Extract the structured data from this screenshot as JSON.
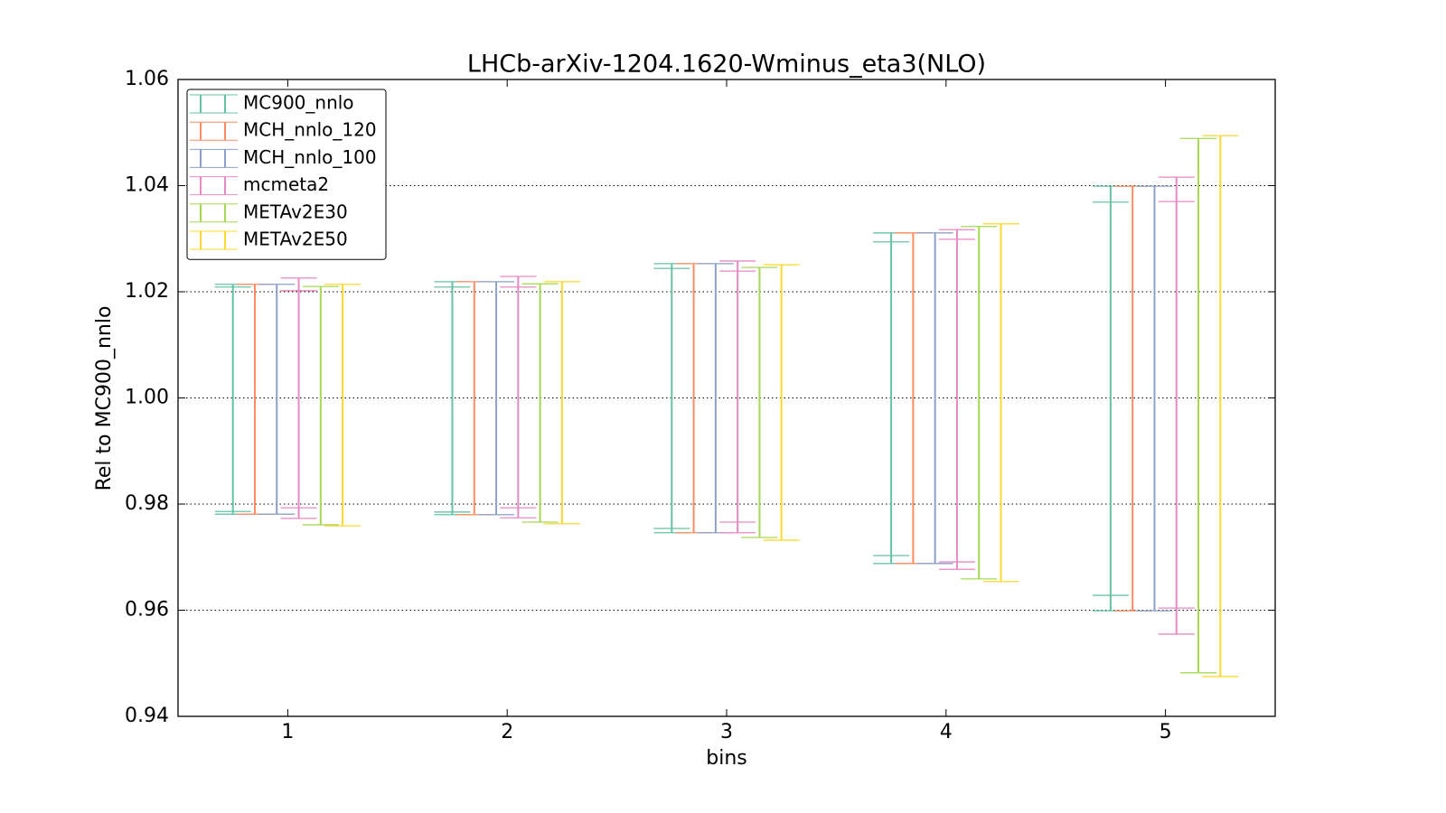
{
  "chart_data": {
    "type": "errorbar",
    "title": "LHCb-arXiv-1204.1620-Wminus_eta3(NLO)",
    "x_label": "bins",
    "y_label": "Rel to MC900_nnlo",
    "x": [
      1,
      2,
      3,
      4,
      5
    ],
    "xlim": [
      0.5,
      5.5
    ],
    "xticks": [
      1,
      2,
      3,
      4,
      5
    ],
    "ylim": [
      0.94,
      1.06
    ],
    "yticks": [
      0.94,
      0.96,
      0.98,
      {
        "value": 1,
        "label": "1.00"
      },
      1.02,
      1.04,
      1.06
    ],
    "grid": true,
    "legend": "upper-left",
    "series": [
      {
        "name": "MC900_nnlo",
        "color": "#66c2a5",
        "upper": [
          1.0214,
          1.0219,
          1.0253,
          1.0311,
          1.0399
        ],
        "lower": [
          0.9781,
          0.978,
          0.9746,
          0.9688,
          0.9599
        ],
        "inner_upper": [
          1.0209,
          1.0209,
          1.0244,
          1.0294,
          1.0369
        ],
        "inner_lower": [
          0.9786,
          0.9785,
          0.9754,
          0.9703,
          0.9628
        ]
      },
      {
        "name": "MCH_nnlo_120",
        "color": "#fc8d62",
        "upper": [
          1.0214,
          1.0219,
          1.0253,
          1.0311,
          1.0399
        ],
        "lower": [
          0.9781,
          0.978,
          0.9746,
          0.9688,
          0.9599
        ]
      },
      {
        "name": "MCH_nnlo_100",
        "color": "#8da0cb",
        "upper": [
          1.0214,
          1.0219,
          1.0253,
          1.0311,
          1.0399
        ],
        "lower": [
          0.9781,
          0.978,
          0.9746,
          0.9688,
          0.9599
        ]
      },
      {
        "name": "mcmeta2",
        "color": "#e78ac3",
        "upper": [
          1.0226,
          1.0229,
          1.0258,
          1.0317,
          1.0416
        ],
        "lower": [
          0.9773,
          0.9774,
          0.9746,
          0.9677,
          0.9555
        ],
        "inner_upper": [
          1.0202,
          1.0209,
          1.0239,
          1.0299,
          1.037
        ],
        "inner_lower": [
          0.9793,
          0.9793,
          0.9766,
          0.9691,
          0.9604
        ]
      },
      {
        "name": "METAv2E30",
        "color": "#a6d854",
        "upper": [
          1.021,
          1.0215,
          1.0246,
          1.0323,
          1.0489
        ],
        "lower": [
          0.9761,
          0.9766,
          0.9737,
          0.9659,
          0.9482
        ]
      },
      {
        "name": "METAv2E50",
        "color": "#ffd92f",
        "upper": [
          1.0214,
          1.0219,
          1.0251,
          1.0328,
          1.0494
        ],
        "lower": [
          0.9759,
          0.9763,
          0.9732,
          0.9654,
          0.9475
        ]
      }
    ]
  }
}
